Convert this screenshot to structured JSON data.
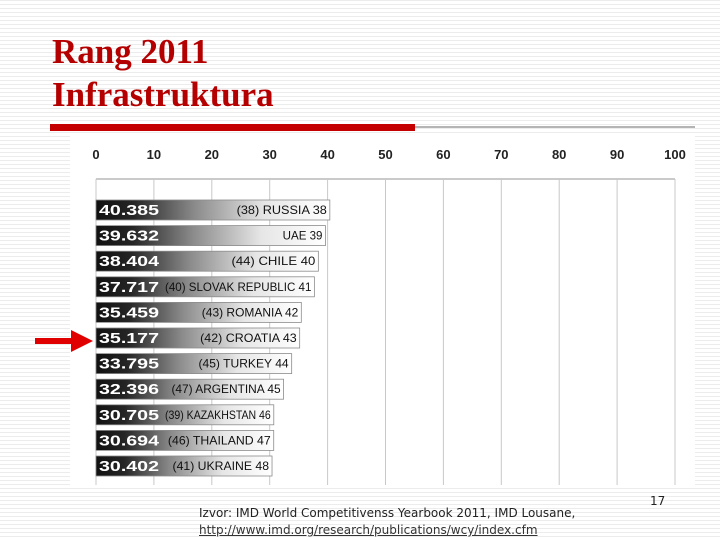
{
  "slide": {
    "title_line1": "Rang 2011",
    "title_line2": "Infrastruktura",
    "source_line1": "Izvor: IMD World Competitivenss Yearbook 2011, IMD Lousane,",
    "source_line2": "http://www.imd.org/research/publications/wcy/index.cfm",
    "page_number": "17",
    "highlight_arrow": "right-arrow-icon",
    "colors": {
      "title": "#b40000",
      "rule": "#c40000",
      "arrow": "#e00000",
      "bar_dark": "#111111",
      "bar_light": "#ffffff",
      "value_text": "#ffffff"
    }
  },
  "chart_data": {
    "type": "bar",
    "orientation": "horizontal",
    "title": "",
    "xlabel": "",
    "ylabel": "",
    "xlim": [
      0,
      100
    ],
    "xticks": [
      0,
      10,
      20,
      30,
      40,
      50,
      60,
      70,
      80,
      90,
      100
    ],
    "grid": true,
    "highlighted": "(42) CROATIA 43",
    "categories": [
      "(38) RUSSIA 38",
      "UAE 39",
      "(44) CHILE 40",
      "(40) SLOVAK REPUBLIC 41",
      "(43) ROMANIA 42",
      "(42) CROATIA 43",
      "(45) TURKEY 44",
      "(47) ARGENTINA 45",
      "(39) KAZAKHSTAN 46",
      "(46) THAILAND 47",
      "(41) UKRAINE 48"
    ],
    "value_labels": [
      "40.385",
      "39.632",
      "38.404",
      "37.717",
      "35.459",
      "35.177",
      "33.795",
      "32.396",
      "30.705",
      "30.694",
      "30.402"
    ],
    "values": [
      40.385,
      39.632,
      38.404,
      37.717,
      35.459,
      35.177,
      33.795,
      32.396,
      30.705,
      30.694,
      30.402
    ]
  }
}
